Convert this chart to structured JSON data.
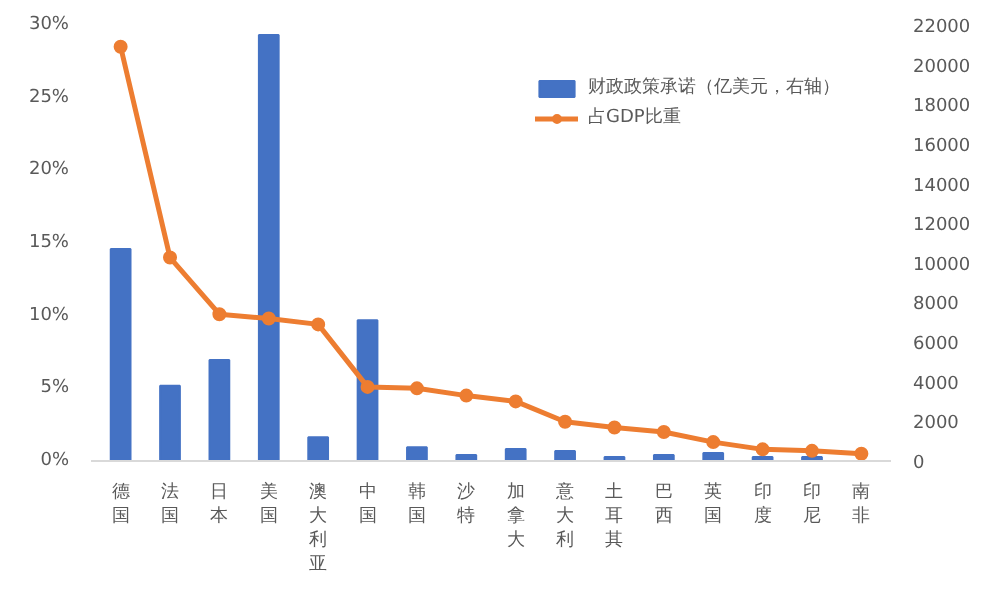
{
  "chart_data": {
    "type": "bar",
    "categories": [
      "德国",
      "法国",
      "日本",
      "美国",
      "澳大利亚",
      "中国",
      "韩国",
      "沙特",
      "加拿大",
      "意大利",
      "土耳其",
      "巴西",
      "英国",
      "印度",
      "印尼",
      "南非"
    ],
    "series": [
      {
        "name": "财政政策承诺（亿美元，右轴）",
        "axis": "y2",
        "color": "#4472c4",
        "values": [
          10700,
          3800,
          5100,
          21500,
          1200,
          7100,
          700,
          300,
          600,
          500,
          200,
          300,
          400,
          200,
          200,
          0
        ]
      },
      {
        "name": "占GDP比重",
        "type": "line",
        "color": "#ed7d31",
        "marker": "circle",
        "values": [
          28.5,
          14.0,
          10.1,
          9.8,
          9.4,
          5.1,
          5.0,
          4.5,
          4.1,
          2.7,
          2.3,
          2.0,
          1.3,
          0.8,
          0.7,
          0.5
        ]
      }
    ],
    "ylim": [
      0,
      30
    ],
    "yticks": [
      {
        "value": 0,
        "label": "0%"
      },
      {
        "value": 5,
        "label": "5%"
      },
      {
        "value": 10,
        "label": "10%"
      },
      {
        "value": 15,
        "label": "15%"
      },
      {
        "value": 20,
        "label": "20%"
      },
      {
        "value": 25,
        "label": "25%"
      },
      {
        "value": 30,
        "label": "30%"
      }
    ],
    "y2lim": [
      0,
      22000
    ],
    "y2ticks": [
      0,
      2000,
      4000,
      6000,
      8000,
      10000,
      12000,
      14000,
      16000,
      18000,
      20000,
      22000
    ],
    "grid": false,
    "legend": "top right"
  }
}
